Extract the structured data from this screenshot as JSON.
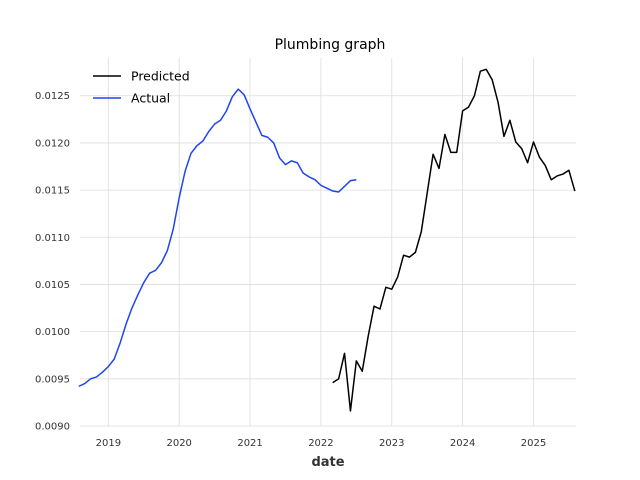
{
  "chart_data": {
    "type": "line",
    "title": "Plumbing graph",
    "xlabel": "date",
    "ylabel": "",
    "xlim": [
      2018.6,
      2025.6
    ],
    "ylim": [
      0.009,
      0.0129
    ],
    "x_ticks": [
      2019,
      2020,
      2021,
      2022,
      2023,
      2024,
      2025
    ],
    "x_tick_labels": [
      "2019",
      "2020",
      "2021",
      "2022",
      "2023",
      "2024",
      "2025"
    ],
    "y_ticks": [
      0.009,
      0.0095,
      0.01,
      0.0105,
      0.011,
      0.0115,
      0.012,
      0.0125
    ],
    "y_tick_labels": [
      "0.0090",
      "0.0095",
      "0.0100",
      "0.0105",
      "0.0110",
      "0.0115",
      "0.0120",
      "0.0125"
    ],
    "grid": true,
    "legend_position": "top-left",
    "series": [
      {
        "name": "Predicted",
        "color": "#000000",
        "x": [
          "2022-03",
          "2022-04",
          "2022-05",
          "2022-06",
          "2022-07",
          "2022-08",
          "2022-09",
          "2022-10",
          "2022-11",
          "2022-12",
          "2023-01",
          "2023-02",
          "2023-03",
          "2023-04",
          "2023-05",
          "2023-06",
          "2023-07",
          "2023-08",
          "2023-09",
          "2023-10",
          "2023-11",
          "2023-12",
          "2024-01",
          "2024-02",
          "2024-03",
          "2024-04",
          "2024-05",
          "2024-06",
          "2024-07",
          "2024-08",
          "2024-09",
          "2024-10",
          "2024-11",
          "2024-12",
          "2025-01",
          "2025-02",
          "2025-03",
          "2025-04",
          "2025-05",
          "2025-06",
          "2025-07",
          "2025-08"
        ],
        "values": [
          0.00946,
          0.0095,
          0.00977,
          0.00916,
          0.00969,
          0.00958,
          0.00995,
          0.01027,
          0.01024,
          0.01047,
          0.01045,
          0.01058,
          0.01081,
          0.01079,
          0.01084,
          0.01106,
          0.01147,
          0.01188,
          0.01173,
          0.01209,
          0.0119,
          0.0119,
          0.01234,
          0.01238,
          0.0125,
          0.01276,
          0.01278,
          0.01267,
          0.01243,
          0.01207,
          0.01224,
          0.01201,
          0.01194,
          0.01179,
          0.01201,
          0.01185,
          0.01176,
          0.01161,
          0.01165,
          0.01167,
          0.01171,
          0.01149
        ]
      },
      {
        "name": "Actual",
        "color": "#1f45f0",
        "x": [
          "2018-08",
          "2018-09",
          "2018-10",
          "2018-11",
          "2018-12",
          "2019-01",
          "2019-02",
          "2019-03",
          "2019-04",
          "2019-05",
          "2019-06",
          "2019-07",
          "2019-08",
          "2019-09",
          "2019-10",
          "2019-11",
          "2019-12",
          "2020-01",
          "2020-02",
          "2020-03",
          "2020-04",
          "2020-05",
          "2020-06",
          "2020-07",
          "2020-08",
          "2020-09",
          "2020-10",
          "2020-11",
          "2020-12",
          "2021-01",
          "2021-02",
          "2021-03",
          "2021-04",
          "2021-05",
          "2021-06",
          "2021-07",
          "2021-08",
          "2021-09",
          "2021-10",
          "2021-11",
          "2021-12",
          "2022-01",
          "2022-02",
          "2022-03",
          "2022-04",
          "2022-05",
          "2022-06",
          "2022-07"
        ],
        "values": [
          0.00942,
          0.00945,
          0.0095,
          0.00952,
          0.00957,
          0.00963,
          0.00971,
          0.00988,
          0.01008,
          0.01025,
          0.01039,
          0.01052,
          0.01062,
          0.01065,
          0.01073,
          0.01086,
          0.01109,
          0.01142,
          0.0117,
          0.01189,
          0.01197,
          0.01202,
          0.01212,
          0.0122,
          0.01224,
          0.01234,
          0.01249,
          0.01257,
          0.01251,
          0.01236,
          0.01222,
          0.01208,
          0.01206,
          0.012,
          0.01184,
          0.01177,
          0.01181,
          0.01179,
          0.01168,
          0.01164,
          0.01161,
          0.01155,
          0.01152,
          0.01149,
          0.01148,
          0.01154,
          0.0116,
          0.01161
        ]
      }
    ]
  }
}
